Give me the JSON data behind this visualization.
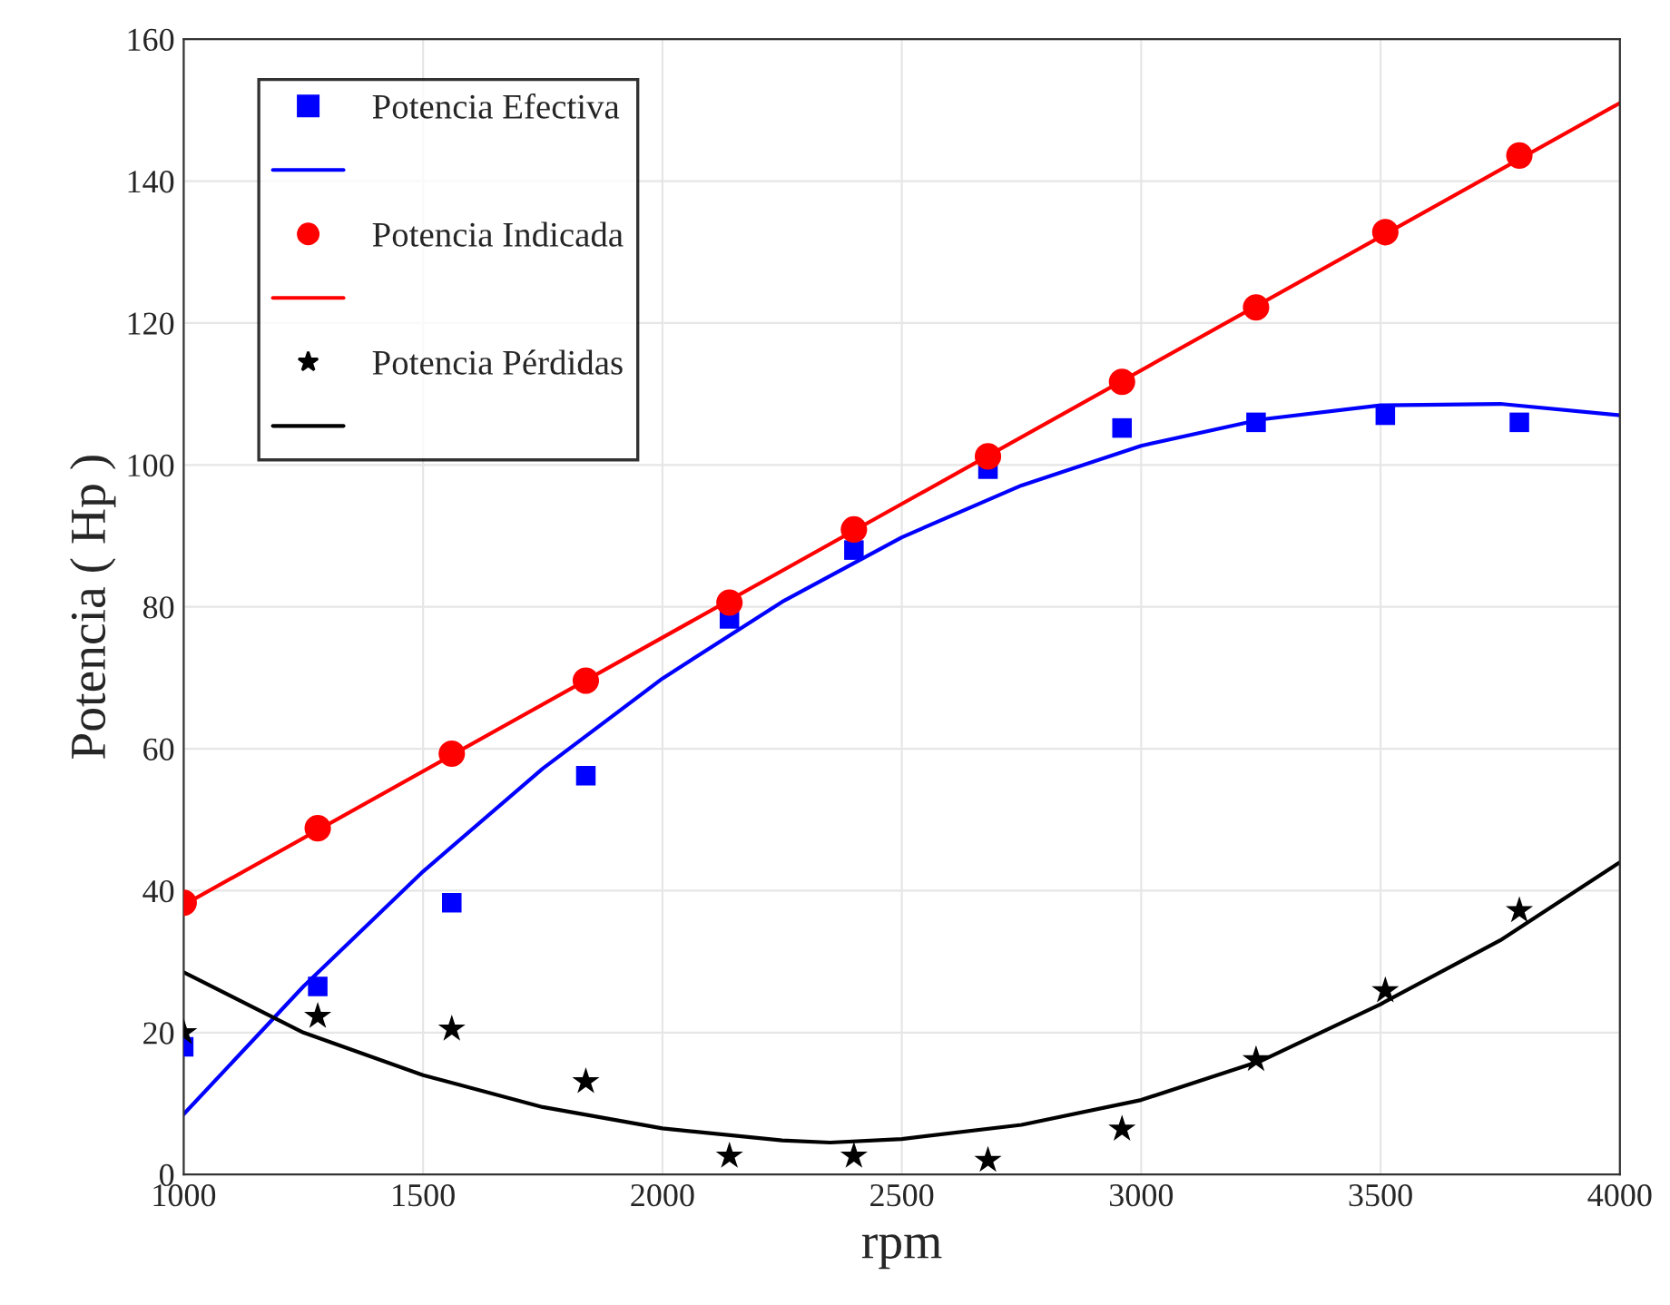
{
  "chart_data": {
    "type": "scatter",
    "xlabel": "rpm",
    "ylabel": "Potencia ( Hp )",
    "xlim": [
      1000,
      4000
    ],
    "xticks": [
      1000,
      1500,
      2000,
      2500,
      3000,
      3500,
      4000
    ],
    "ylim": [
      0,
      160
    ],
    "yticks": [
      0,
      20,
      40,
      60,
      80,
      100,
      120,
      140,
      160
    ],
    "grid": true,
    "legend": "top left",
    "series": [
      {
        "name": "Potencia Efectiva",
        "marker": "square",
        "color": "#0000ff",
        "x": [
          1000,
          1280,
          1560,
          1840,
          2140,
          2400,
          2680,
          2960,
          3240,
          3510,
          3790
        ],
        "values": [
          18,
          26.5,
          38.3,
          56.2,
          78.3,
          88,
          99.4,
          105.2,
          106,
          107,
          106
        ]
      },
      {
        "type": "line",
        "marker": "none",
        "color": "#0000ff",
        "x": [
          1000,
          1250,
          1500,
          1750,
          2000,
          2250,
          2500,
          2750,
          3000,
          3250,
          3500,
          3750,
          4000
        ],
        "values": [
          8.5,
          26.5,
          42.7,
          57.2,
          69.9,
          80.7,
          89.8,
          97.1,
          102.7,
          106.4,
          108.4,
          108.6,
          107
        ]
      },
      {
        "name": "Potencia Indicada",
        "marker": "circle",
        "color": "#ff0000",
        "x": [
          1000,
          1280,
          1560,
          1840,
          2140,
          2400,
          2680,
          2960,
          3240,
          3510,
          3790
        ],
        "values": [
          38.3,
          48.8,
          59.3,
          69.6,
          80.6,
          90.9,
          101.2,
          111.7,
          122.2,
          132.8,
          143.6
        ]
      },
      {
        "type": "line",
        "marker": "none",
        "color": "#ff0000",
        "x": [
          1000,
          2500,
          4000
        ],
        "values": [
          38,
          94.5,
          151
        ]
      },
      {
        "name": "Potencia Pérdidas",
        "marker": "star",
        "color": "#000000",
        "x": [
          1000,
          1280,
          1560,
          1840,
          2140,
          2400,
          2680,
          2960,
          3240,
          3510,
          3790
        ],
        "values": [
          20,
          22.3,
          20.5,
          13.1,
          2.6,
          2.6,
          2,
          6.4,
          16.2,
          25.9,
          37.2
        ]
      },
      {
        "type": "line",
        "marker": "none",
        "color": "#000000",
        "x": [
          1000,
          1250,
          1500,
          1750,
          2000,
          2250,
          2350,
          2500,
          2750,
          3000,
          3250,
          3500,
          3750,
          4000
        ],
        "values": [
          28.5,
          20,
          14,
          9.5,
          6.5,
          4.8,
          4.5,
          5,
          7,
          10.5,
          16,
          24,
          33,
          44
        ]
      }
    ]
  }
}
